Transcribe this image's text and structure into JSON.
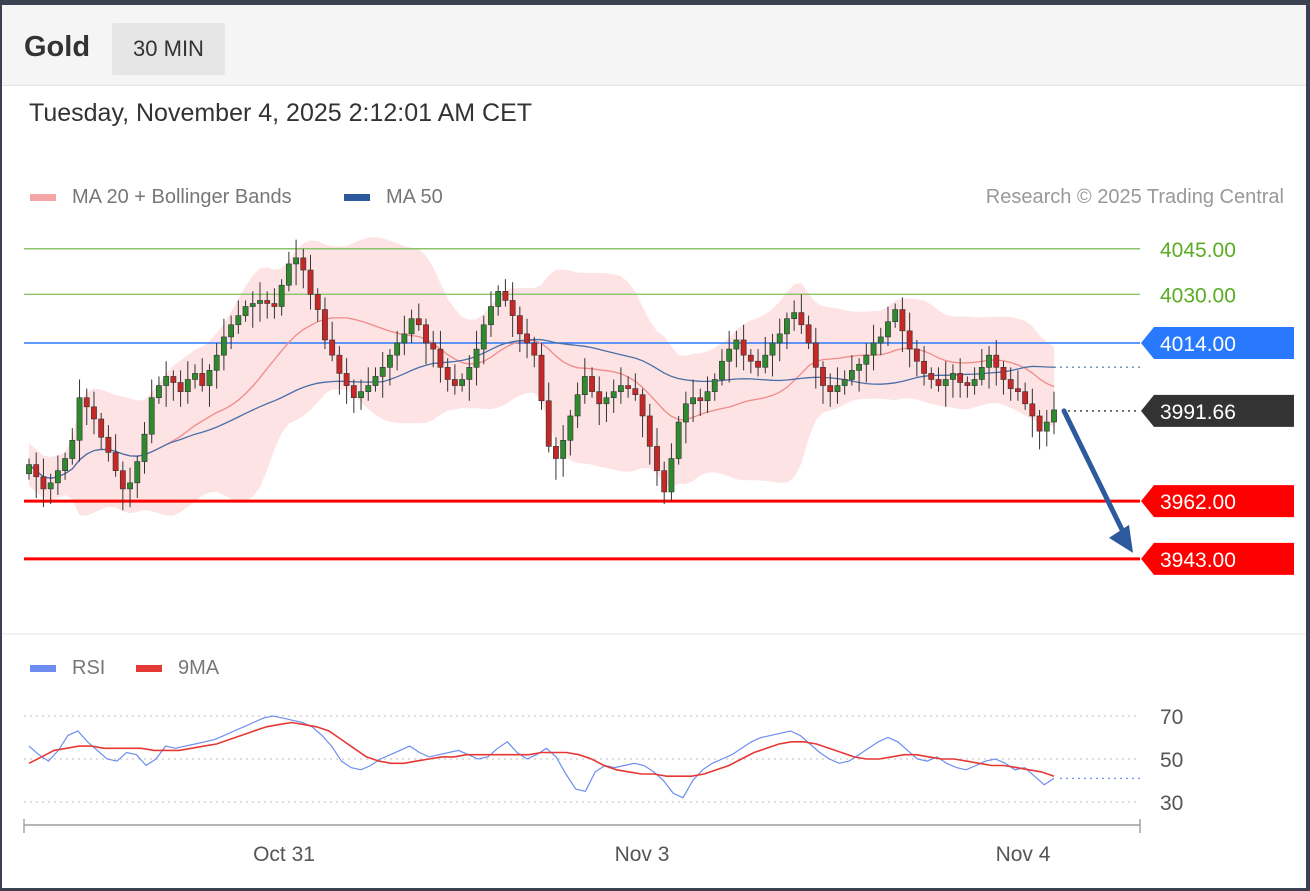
{
  "header": {
    "instrument": "Gold",
    "timeframe": "30 MIN"
  },
  "datetime": "Tuesday, November 4, 2025 2:12:01 AM CET",
  "legend": {
    "ma20_label": "MA 20 + Bollinger Bands",
    "ma50_label": "MA 50",
    "copyright": "Research © 2025 Trading Central"
  },
  "rsi_legend": {
    "rsi_label": "RSI",
    "ma9_label": "9MA"
  },
  "colors": {
    "bollinger_fill": "#fde3e3",
    "ma20": "#f08a8a",
    "ma50": "#4a6fa8",
    "up_candle": "#2f8a2f",
    "down_candle": "#c62828",
    "resistance": "#8cc26a",
    "pivot": "#2979ff",
    "support": "#ff0000",
    "current": "#333333",
    "arrow": "#2c5a9c",
    "rsi": "#6d8ef0",
    "rsi_ma": "#e53935"
  },
  "chart_data": [
    {
      "type": "candlestick",
      "levels": [
        {
          "value": 4045.0,
          "label": "4045.00",
          "kind": "resistance"
        },
        {
          "value": 4030.0,
          "label": "4030.00",
          "kind": "resistance"
        },
        {
          "value": 4014.0,
          "label": "4014.00",
          "kind": "pivot"
        },
        {
          "value": 3991.66,
          "label": "3991.66",
          "kind": "current"
        },
        {
          "value": 3962.0,
          "label": "3962.00",
          "kind": "support"
        },
        {
          "value": 3943.0,
          "label": "3943.00",
          "kind": "support"
        }
      ],
      "x_ticks": [
        "Oct 31",
        "Nov 3",
        "Nov 4"
      ],
      "arrow": {
        "from": 3991.66,
        "to": 3943.0,
        "direction": "down"
      },
      "closes": [
        3974,
        3970,
        3966,
        3968,
        3972,
        3976,
        3982,
        3996,
        3993,
        3989,
        3983,
        3978,
        3972,
        3966,
        3968,
        3975,
        3984,
        3996,
        4000,
        4003,
        4001,
        3998,
        4002,
        4004,
        4000,
        4005,
        4010,
        4016,
        4020,
        4023,
        4026,
        4027,
        4028,
        4027,
        4026,
        4033,
        4040,
        4042,
        4038,
        4030,
        4025,
        4015,
        4010,
        4004,
        4000,
        3996,
        3998,
        4000,
        4003,
        4006,
        4010,
        4014,
        4017,
        4022,
        4020,
        4014,
        4012,
        4006,
        4002,
        4000,
        4002,
        4006,
        4012,
        4020,
        4026,
        4031,
        4028,
        4023,
        4017,
        4014,
        4010,
        3995,
        3980,
        3976,
        3982,
        3990,
        3997,
        4003,
        3998,
        3994,
        3996,
        3998,
        4000,
        3999,
        3997,
        3990,
        3980,
        3972,
        3965,
        3976,
        3988,
        3994,
        3996,
        3995,
        3998,
        4002,
        4008,
        4012,
        4015,
        4010,
        4008,
        4006,
        4010,
        4014,
        4017,
        4022,
        4024,
        4020,
        4014,
        4006,
        4000,
        3998,
        4000,
        4002,
        4005,
        4007,
        4010,
        4014,
        4016,
        4021,
        4025,
        4018,
        4012,
        4008,
        4004,
        4002,
        4000,
        4002,
        4004,
        4001,
        4000,
        4002,
        4006,
        4010,
        4006,
        4002,
        3999,
        3998,
        3994,
        3990,
        3985,
        3988,
        3992
      ]
    },
    {
      "type": "line",
      "x_ticks": [
        "Oct 31",
        "Nov 3",
        "Nov 4"
      ],
      "y_ticks": [
        70,
        50,
        30
      ],
      "ylim": [
        25,
        75
      ],
      "series": [
        {
          "name": "RSI",
          "values": [
            56,
            52,
            49,
            54,
            61,
            63,
            58,
            54,
            50,
            49,
            53,
            52,
            47,
            50,
            56,
            55,
            56,
            57,
            58,
            59,
            61,
            63,
            65,
            67,
            69,
            70,
            69,
            68,
            67,
            65,
            61,
            56,
            49,
            46,
            45,
            47,
            50,
            52,
            54,
            56,
            53,
            51,
            52,
            53,
            54,
            52,
            50,
            51,
            55,
            58,
            53,
            50,
            52,
            55,
            51,
            43,
            36,
            35,
            44,
            47,
            46,
            47,
            48,
            47,
            44,
            40,
            34,
            32,
            40,
            45,
            48,
            50,
            52,
            55,
            58,
            60,
            61,
            62,
            63,
            61,
            57,
            53,
            50,
            48,
            49,
            52,
            55,
            58,
            60,
            58,
            54,
            50,
            49,
            51,
            48,
            46,
            45,
            47,
            49,
            50,
            48,
            45,
            46,
            42,
            38,
            41
          ]
        },
        {
          "name": "9MA",
          "values": [
            48,
            51,
            54,
            55,
            56,
            56,
            55,
            55,
            55,
            55,
            54,
            54,
            54,
            55,
            56,
            57,
            59,
            61,
            63,
            65,
            66,
            67,
            66,
            65,
            63,
            59,
            55,
            51,
            49,
            48,
            48,
            49,
            50,
            51,
            51,
            52,
            52,
            52,
            52,
            52,
            52,
            53,
            53,
            53,
            52,
            50,
            47,
            45,
            44,
            43,
            43,
            42,
            42,
            42,
            43,
            45,
            47,
            50,
            53,
            55,
            57,
            58,
            58,
            57,
            55,
            53,
            51,
            50,
            50,
            51,
            52,
            52,
            51,
            50,
            50,
            49,
            48,
            47,
            47,
            46,
            45,
            44,
            42
          ]
        }
      ]
    }
  ]
}
